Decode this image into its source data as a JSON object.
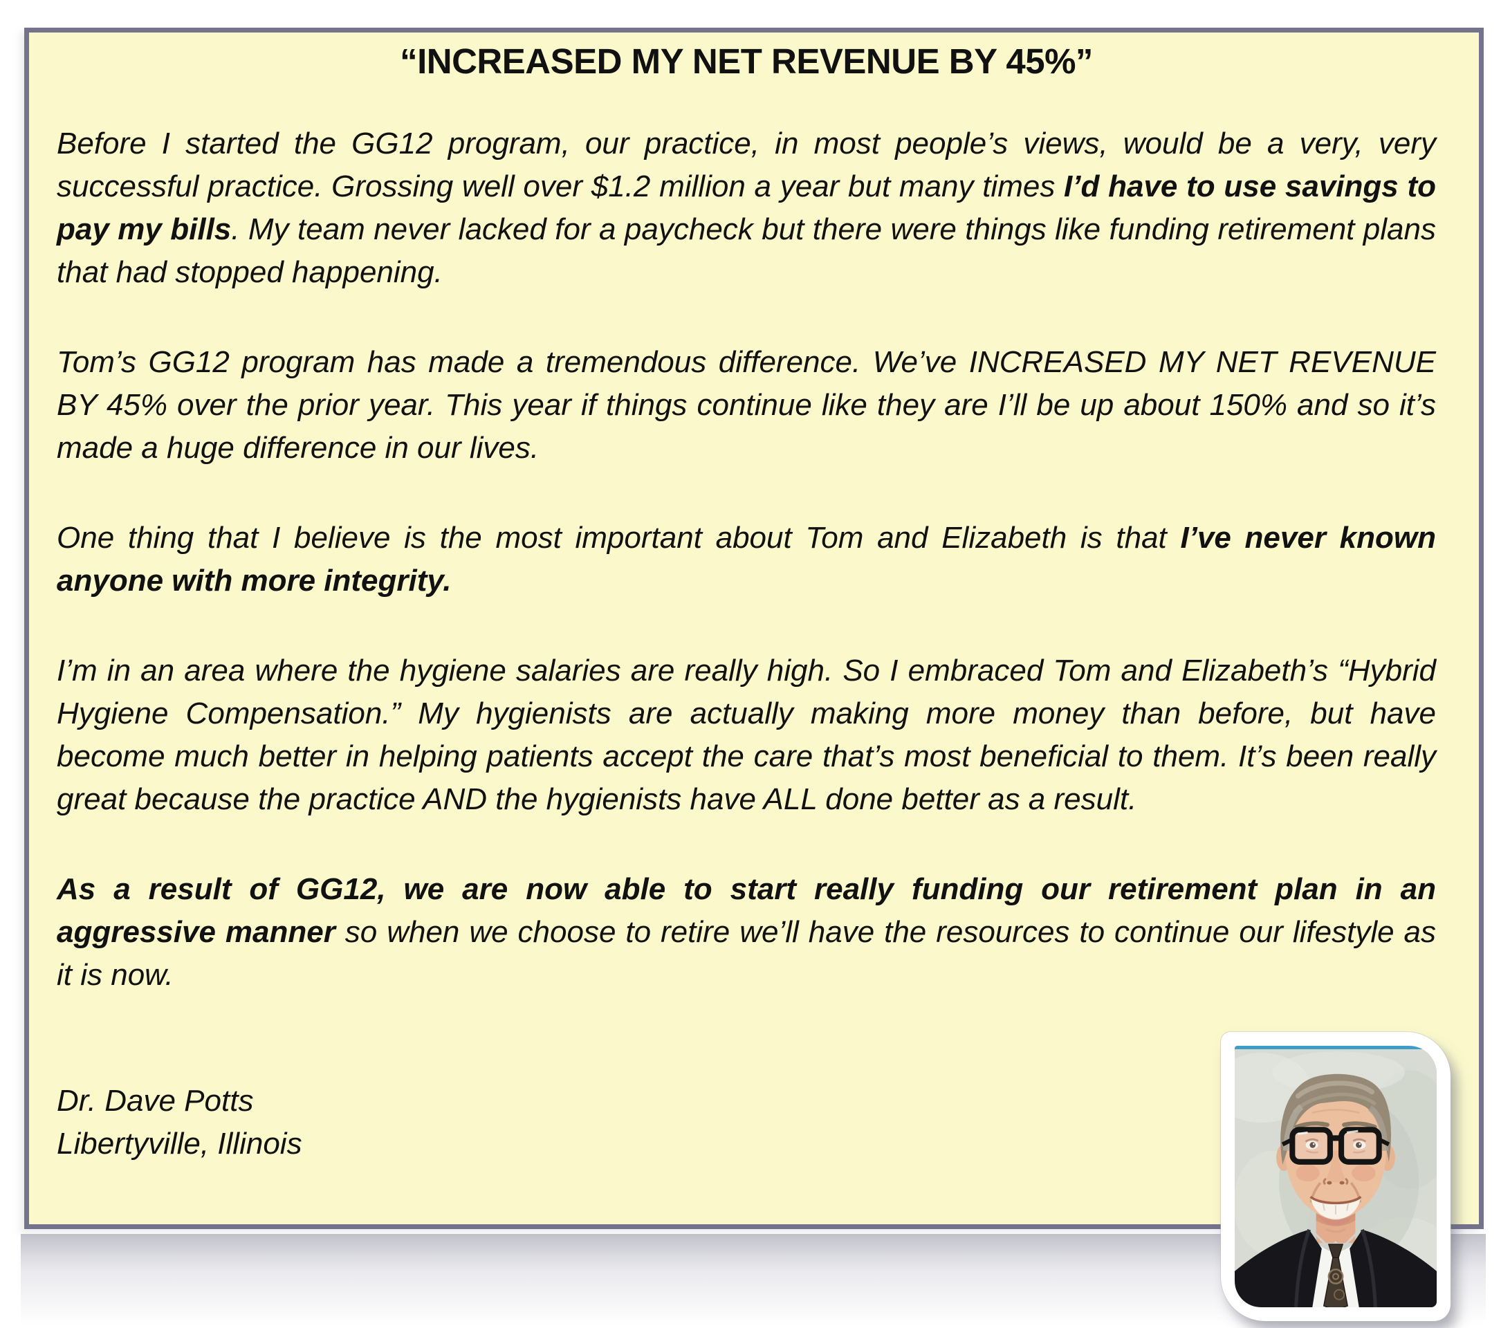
{
  "document": {
    "heading": "“INCREASED MY NET REVENUE BY 45%”",
    "paragraphs": [
      {
        "segments": [
          {
            "text": "Before I started the GG12 program, our practice, in most people’s views, would be a very, very successful practice. Grossing well over $1.2 million a year but many times ",
            "bold": false
          },
          {
            "text": "I’d have to use savings to pay my bills",
            "bold": true
          },
          {
            "text": ". My team never lacked for a paycheck but there were things like funding retirement plans that had stopped happening.",
            "bold": false
          }
        ]
      },
      {
        "segments": [
          {
            "text": "Tom’s GG12 program has made a tremendous difference. We’ve INCREASED MY NET REVENUE BY 45% over the prior year. This year if things continue like they are I’ll be up about 150% and so it’s made a huge difference in our lives.",
            "bold": false
          }
        ]
      },
      {
        "segments": [
          {
            "text": "One thing that I believe is the most important about Tom and Elizabeth is that ",
            "bold": false
          },
          {
            "text": "I’ve never known anyone with more integrity.",
            "bold": true
          }
        ]
      },
      {
        "segments": [
          {
            "text": "I’m in an area where the hygiene salaries are really high. So I embraced Tom and Elizabeth’s “Hybrid Hygiene Compensation.” My hygienists are actually making more money than before, but have become much better in helping patients accept the care that’s most beneficial to them. It’s been really great because the practice AND the hygienists have ALL done better as a result.",
            "bold": false
          }
        ]
      },
      {
        "segments": [
          {
            "text": "As a result of GG12, we are now able to start really funding our retirement plan in an aggressive manner",
            "bold": true
          },
          {
            "text": " so when we choose to retire we’ll have the resources to continue our lifestyle as it is now.",
            "bold": false
          }
        ]
      }
    ],
    "signature": {
      "name": "Dr. Dave Potts",
      "location": "Libertyville, Illinois"
    },
    "photo": {
      "alt": "Portrait photo of a smiling man with glasses wearing a dark suit, white shirt and patterned tie"
    },
    "colors": {
      "card_background": "#fbf9cc",
      "card_border": "#73738c",
      "text": "#111111",
      "photo_frame": "#ffffff",
      "photo_top_line": "#3f9ec9",
      "bottom_shadow": "#9191a2"
    }
  }
}
